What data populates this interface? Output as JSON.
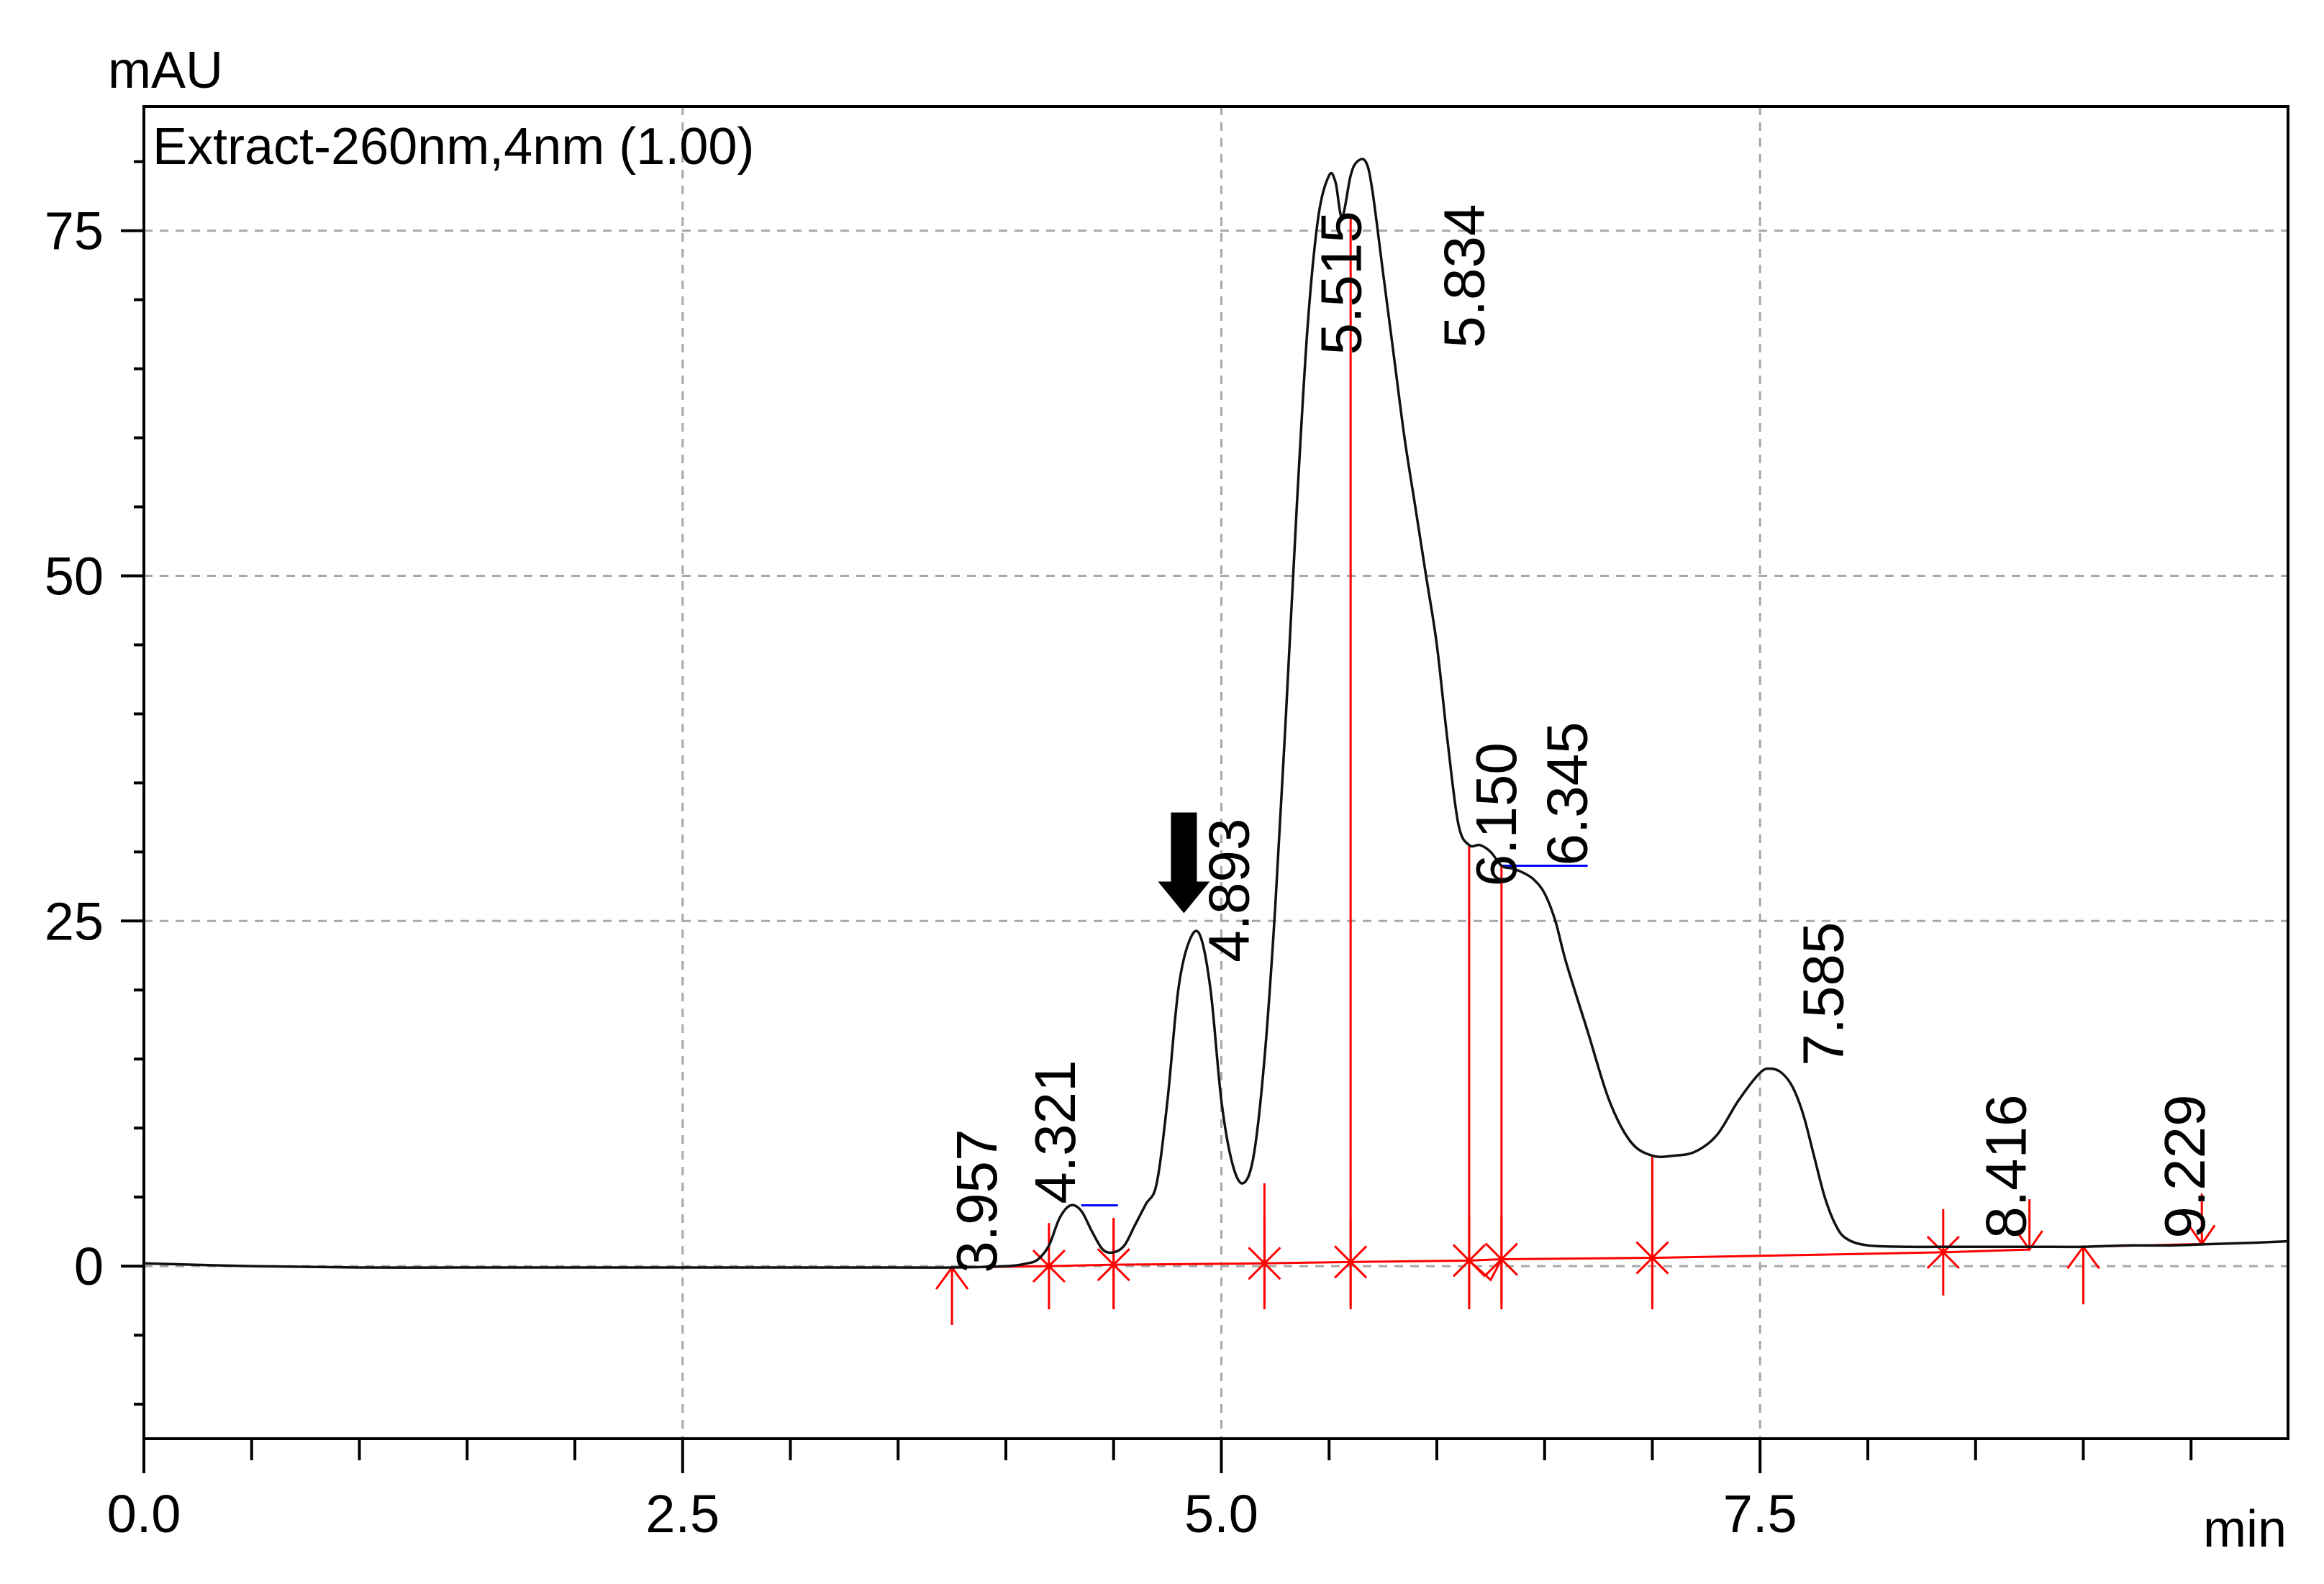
{
  "colors": {
    "trace": "#111111",
    "annotation": "#ff0000",
    "baseline_flat": "#0000ff",
    "grid": "#a8a8a8",
    "axis": "#000000"
  },
  "chart_data": {
    "type": "line",
    "title": "Extract-260nm,4nm (1.00)",
    "xlabel": "min",
    "ylabel": "mAU",
    "xlim": [
      0.0,
      9.95
    ],
    "ylim": [
      -12.5,
      84
    ],
    "x_ticks": [
      0.0,
      2.5,
      5.0,
      7.5
    ],
    "x_tick_labels": [
      "0.0",
      "2.5",
      "5.0",
      "7.5"
    ],
    "y_ticks": [
      0,
      25,
      50,
      75
    ],
    "y_tick_labels": [
      "0",
      "25",
      "50",
      "75"
    ],
    "grid": true,
    "series": [
      {
        "name": "Extract-260nm,4nm (1.00)",
        "x": [
          0.0,
          0.5,
          1.0,
          1.5,
          2.0,
          2.5,
          3.0,
          3.5,
          3.75,
          4.0,
          4.1,
          4.15,
          4.2,
          4.25,
          4.3,
          4.35,
          4.4,
          4.45,
          4.5,
          4.55,
          4.6,
          4.65,
          4.7,
          4.75,
          4.8,
          4.85,
          4.9,
          4.95,
          5.0,
          5.05,
          5.1,
          5.15,
          5.2,
          5.25,
          5.3,
          5.35,
          5.4,
          5.45,
          5.5,
          5.53,
          5.56,
          5.6,
          5.63,
          5.67,
          5.7,
          5.75,
          5.8,
          5.85,
          5.9,
          5.95,
          6.0,
          6.05,
          6.1,
          6.15,
          6.2,
          6.25,
          6.3,
          6.35,
          6.4,
          6.45,
          6.5,
          6.55,
          6.6,
          6.7,
          6.8,
          6.9,
          7.0,
          7.1,
          7.2,
          7.3,
          7.4,
          7.5,
          7.55,
          7.6,
          7.65,
          7.7,
          7.75,
          7.8,
          7.85,
          7.9,
          8.0,
          8.2,
          8.4,
          8.6,
          8.8,
          9.0,
          9.2,
          9.4,
          9.6,
          9.8,
          9.95
        ],
        "y": [
          0.2,
          0.0,
          -0.1,
          -0.1,
          -0.1,
          -0.1,
          -0.1,
          -0.1,
          -0.1,
          0.0,
          0.2,
          0.5,
          1.5,
          3.5,
          4.4,
          4.0,
          2.5,
          1.2,
          1.0,
          1.5,
          3.0,
          4.5,
          6.0,
          12.0,
          20.0,
          23.5,
          24.0,
          20.0,
          12.0,
          7.5,
          6.0,
          8.0,
          15.0,
          26.0,
          40.0,
          55.0,
          68.0,
          76.0,
          79.0,
          78.5,
          76.0,
          79.0,
          80.0,
          80.0,
          78.0,
          72.0,
          66.0,
          60.0,
          55.0,
          50.0,
          45.0,
          38.0,
          32.0,
          30.5,
          30.5,
          30.0,
          29.0,
          28.8,
          28.5,
          28.0,
          27.0,
          25.0,
          22.0,
          17.0,
          12.0,
          9.0,
          8.0,
          8.0,
          8.3,
          9.5,
          12.0,
          14.0,
          14.3,
          14.0,
          13.0,
          11.0,
          8.0,
          5.0,
          3.0,
          2.0,
          1.5,
          1.4,
          1.4,
          1.4,
          1.4,
          1.4,
          1.5,
          1.5,
          1.6,
          1.7,
          1.8
        ]
      }
    ],
    "peak_labels": [
      {
        "rt": "3.957",
        "x": 3.957,
        "y": 0.5
      },
      {
        "rt": "4.321",
        "x": 4.321,
        "y": 4.4
      },
      {
        "rt": "4.893",
        "x": 4.893,
        "y": 24.0
      },
      {
        "rt": "5.515",
        "x": 5.515,
        "y": 79.0
      },
      {
        "rt": "5.834",
        "x": 5.834,
        "y": 80.0
      },
      {
        "rt": "6.150",
        "x": 6.15,
        "y": 30.5
      },
      {
        "rt": "6.345",
        "x": 6.345,
        "y": 28.8
      },
      {
        "rt": "7.585",
        "x": 7.585,
        "y": 14.3
      },
      {
        "rt": "8.416",
        "x": 8.416,
        "y": 1.4
      },
      {
        "rt": "9.229",
        "x": 9.229,
        "y": 1.5
      }
    ],
    "integration_baseline": {
      "x": [
        3.75,
        4.2,
        4.5,
        5.2,
        5.6,
        6.15,
        6.3,
        7.0,
        8.35,
        8.75
      ],
      "y": [
        -0.1,
        0.0,
        0.1,
        0.2,
        0.3,
        0.4,
        0.5,
        0.6,
        1.0,
        1.2
      ]
    },
    "integration_baseline_2": {
      "x": [
        9.0,
        9.55
      ],
      "y": [
        1.4,
        1.6
      ]
    },
    "peak_drops": [
      {
        "x": 4.5,
        "y_top": 3.5
      },
      {
        "x": 5.2,
        "y_top": 6.0
      },
      {
        "x": 5.6,
        "y_top": 76.0
      },
      {
        "x": 6.15,
        "y_top": 30.5
      },
      {
        "x": 6.3,
        "y_top": 29.0
      },
      {
        "x": 7.0,
        "y_top": 8.0
      }
    ],
    "dip_marker": {
      "x": 6.25,
      "y": -1.0
    },
    "blue_segments": [
      {
        "x1": 4.35,
        "x2": 4.52,
        "y": 4.4
      },
      {
        "x1": 6.3,
        "x2": 6.7,
        "y": 29.0
      }
    ],
    "start_markers": [
      {
        "x": 3.75,
        "y": -0.1
      },
      {
        "x": 9.0,
        "y": 1.4
      }
    ],
    "cross_markers": [
      {
        "x": 4.2,
        "y": 0.0
      },
      {
        "x": 4.5,
        "y": 0.1
      },
      {
        "x": 5.2,
        "y": 0.2
      },
      {
        "x": 5.6,
        "y": 0.3
      },
      {
        "x": 6.15,
        "y": 0.4
      },
      {
        "x": 6.3,
        "y": 0.5
      },
      {
        "x": 7.0,
        "y": 0.6
      },
      {
        "x": 8.35,
        "y": 1.0
      }
    ],
    "end_markers": [
      {
        "x": 8.75,
        "y": 1.2
      },
      {
        "x": 9.55,
        "y": 1.6
      }
    ],
    "arrow_annotation": {
      "x": 4.893,
      "y": 24.0,
      "direction": "down"
    }
  }
}
